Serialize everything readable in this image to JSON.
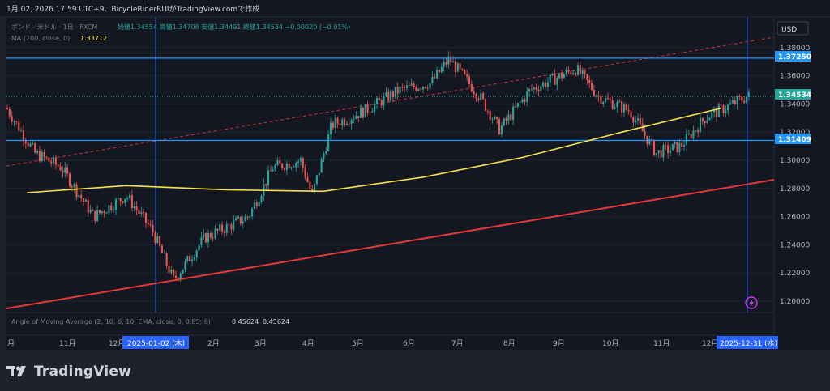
{
  "header": {
    "caption": "1月 02, 2026 17:59 UTC+9、BicycleRiderRUIがTradingView.comで作成"
  },
  "legend": {
    "symbol": "ポンド／米ドル · 1日 · FXCM",
    "ohlc": "始値1.34554  高値1.34708  安値1.34491  終値1.34534  −0.00020 (−0.01%)",
    "ma_label": "MA (200, close, 0)",
    "ma_value": "1.33712"
  },
  "indicator": {
    "label": "Angle of Moving Average (2, 10, 6, 10, EMA, close, 0, 0.85, 6)",
    "value1": "0.45624",
    "value2": "0.45624"
  },
  "currency": "USD",
  "price_labels": {
    "upper_level": "1.37250",
    "last_price": "1.34534",
    "lower_level": "1.31409"
  },
  "time_labels": {
    "start_date": "2025-01-02 (木)",
    "end_date": "2025-12-31 (水)"
  },
  "brand": "TradingView",
  "colors": {
    "background": "#131722",
    "pane": "#1e222d",
    "up": "#26a69a",
    "down": "#ef5350",
    "ma": "#f7e34a",
    "trendline": "#e53935",
    "hline": "#2196f3",
    "vline": "#2962ff"
  },
  "chart_data": {
    "type": "candlestick",
    "symbol": "GBP/USD",
    "timeframe": "1D",
    "y_axis_ticks": [
      1.38,
      1.36,
      1.34,
      1.32,
      1.3,
      1.28,
      1.26,
      1.24,
      1.22,
      1.2
    ],
    "ylim": [
      1.19,
      1.395
    ],
    "x_axis_ticks": [
      "月",
      "11月",
      "12月",
      "2月",
      "3月",
      "4月",
      "5月",
      "6月",
      "7月",
      "8月",
      "9月",
      "10月",
      "11月",
      "12月"
    ],
    "horizontal_levels": [
      1.3725,
      1.31409
    ],
    "last_price": 1.34534,
    "ma200_path": [
      {
        "date": "2024-10",
        "value": 1.277
      },
      {
        "date": "2024-12",
        "value": 1.282
      },
      {
        "date": "2025-02",
        "value": 1.279
      },
      {
        "date": "2025-04",
        "value": 1.278
      },
      {
        "date": "2025-06",
        "value": 1.288
      },
      {
        "date": "2025-08",
        "value": 1.302
      },
      {
        "date": "2025-10",
        "value": 1.32
      },
      {
        "date": "2025-12",
        "value": 1.337
      }
    ],
    "close_path": [
      {
        "date": "2024-10-01",
        "close": 1.34
      },
      {
        "date": "2024-10-20",
        "close": 1.305
      },
      {
        "date": "2024-11-05",
        "close": 1.295
      },
      {
        "date": "2024-11-25",
        "close": 1.26
      },
      {
        "date": "2024-12-15",
        "close": 1.275
      },
      {
        "date": "2024-12-31",
        "close": 1.25
      },
      {
        "date": "2025-01-13",
        "close": 1.215
      },
      {
        "date": "2025-02-01",
        "close": 1.245
      },
      {
        "date": "2025-02-28",
        "close": 1.26
      },
      {
        "date": "2025-03-15",
        "close": 1.295
      },
      {
        "date": "2025-04-01",
        "close": 1.3
      },
      {
        "date": "2025-04-08",
        "close": 1.275
      },
      {
        "date": "2025-04-20",
        "close": 1.325
      },
      {
        "date": "2025-05-10",
        "close": 1.335
      },
      {
        "date": "2025-06-01",
        "close": 1.35
      },
      {
        "date": "2025-06-20",
        "close": 1.355
      },
      {
        "date": "2025-07-01",
        "close": 1.372
      },
      {
        "date": "2025-07-20",
        "close": 1.345
      },
      {
        "date": "2025-08-01",
        "close": 1.322
      },
      {
        "date": "2025-08-20",
        "close": 1.35
      },
      {
        "date": "2025-09-17",
        "close": 1.365
      },
      {
        "date": "2025-10-01",
        "close": 1.345
      },
      {
        "date": "2025-10-20",
        "close": 1.335
      },
      {
        "date": "2025-11-05",
        "close": 1.305
      },
      {
        "date": "2025-11-20",
        "close": 1.31
      },
      {
        "date": "2025-12-05",
        "close": 1.33
      },
      {
        "date": "2025-12-31",
        "close": 1.34534
      }
    ]
  }
}
